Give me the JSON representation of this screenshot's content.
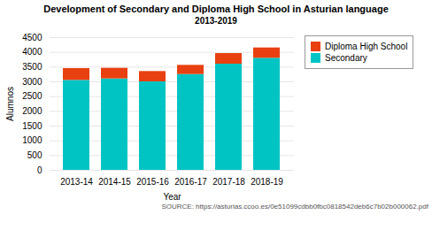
{
  "chart_data": {
    "type": "bar",
    "stacked": true,
    "title": "Development of Secondary and Diploma High School in Asturian language",
    "subtitle": "2013-2019",
    "source": "SOURCE: https://asturias.ccoo.es/0e51099cdbb0fbc0818542deb6c7b02b000062.pdf",
    "xlabel": "Year",
    "ylabel": "Alumnos",
    "categories": [
      "2013-14",
      "2014-15",
      "2015-16",
      "2016-17",
      "2017-18",
      "2018-19"
    ],
    "series": [
      {
        "name": "Secondary",
        "color": "#00C4C4",
        "values": [
          3050,
          3100,
          3000,
          3250,
          3600,
          3800
        ]
      },
      {
        "name": "Diploma High School",
        "color": "#E84010",
        "values": [
          400,
          360,
          350,
          310,
          360,
          350
        ]
      }
    ],
    "ylim": [
      0,
      4500
    ],
    "yticks": [
      0,
      500,
      1000,
      1500,
      2000,
      2500,
      3000,
      3500,
      4000,
      4500
    ],
    "grid": true,
    "legend": "right"
  }
}
